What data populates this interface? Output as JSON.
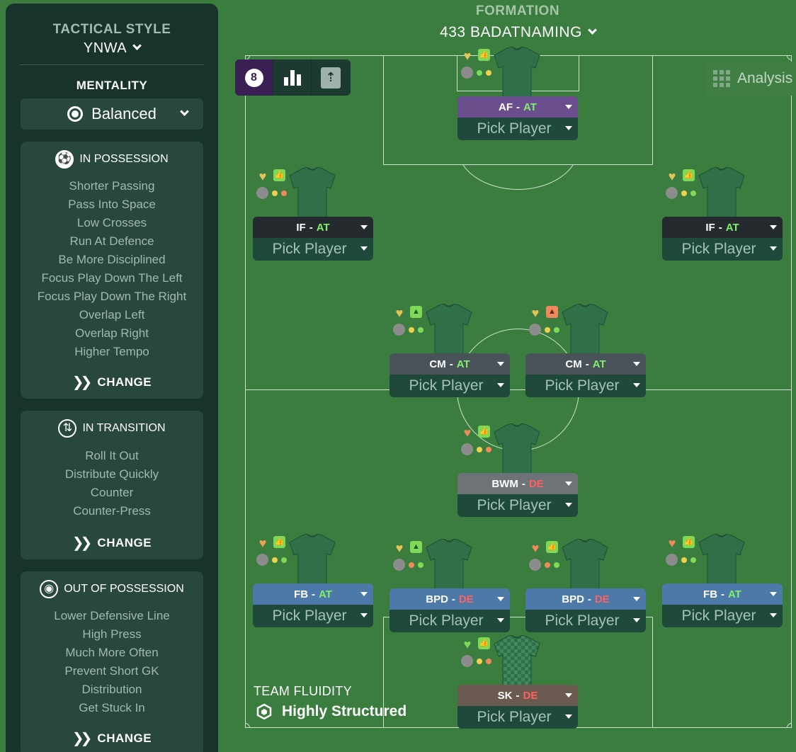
{
  "sidebar": {
    "tactical_style_label": "TACTICAL STYLE",
    "tactical_style_value": "YNWA",
    "mentality_label": "MENTALITY",
    "mentality_value": "Balanced",
    "in_possession": {
      "title": "IN POSSESSION",
      "options": [
        "Shorter Passing",
        "Pass Into Space",
        "Low Crosses",
        "Run At Defence",
        "Be More Disciplined",
        "Focus Play Down The Left",
        "Focus Play Down The Right",
        "Overlap Left",
        "Overlap Right",
        "Higher Tempo"
      ],
      "change_label": "CHANGE"
    },
    "in_transition": {
      "title": "IN TRANSITION",
      "options": [
        "Roll It Out",
        "Distribute Quickly",
        "Counter",
        "Counter-Press"
      ],
      "change_label": "CHANGE"
    },
    "out_of_possession": {
      "title": "OUT OF POSSESSION",
      "options": [
        "Lower Defensive Line",
        "High Press",
        "Much More Often",
        "Prevent Short GK",
        "Distribution",
        "Get Stuck In"
      ],
      "change_label": "CHANGE"
    }
  },
  "formation": {
    "label": "FORMATION",
    "name": "433 BADATNAMING"
  },
  "toolbar": {
    "analysis_label": "Analysis"
  },
  "team_fluidity": {
    "label": "TEAM FLUIDITY",
    "value": "Highly Structured"
  },
  "players": [
    {
      "role": "AF",
      "duty": "AT",
      "pick": "Pick Player",
      "role_color": "#6b4e8e",
      "heart_color": "#e5c55a",
      "thumb": "thumb",
      "dot1": "#7ed957",
      "dot2": "#f0d050"
    },
    {
      "role": "IF",
      "duty": "AT",
      "pick": "Pick Player",
      "role_color": "#252a2e",
      "heart_color": "#e5c55a",
      "thumb": "thumb",
      "dot1": "#f0d050",
      "dot2": "#f08a5a"
    },
    {
      "role": "IF",
      "duty": "AT",
      "pick": "Pick Player",
      "role_color": "#252a2e",
      "heart_color": "#e5c55a",
      "thumb": "thumb",
      "dot1": "#f0d050",
      "dot2": "#7ed957"
    },
    {
      "role": "CM",
      "duty": "AT",
      "pick": "Pick Player",
      "role_color": "#4a5259",
      "heart_color": "#e5c55a",
      "thumb": "up",
      "dot1": "#f0d050",
      "dot2": "#7ed957"
    },
    {
      "role": "CM",
      "duty": "AT",
      "pick": "Pick Player",
      "role_color": "#4a5259",
      "heart_color": "#e5c55a",
      "thumb": "up-orange",
      "dot1": "#f0d050",
      "dot2": "#7ed957"
    },
    {
      "role": "BWM",
      "duty": "DE",
      "pick": "Pick Player",
      "role_color": "#6e7378",
      "heart_color": "#f08a5a",
      "thumb": "thumb",
      "dot1": "#f0d050",
      "dot2": "#f08a5a"
    },
    {
      "role": "FB",
      "duty": "AT",
      "pick": "Pick Player",
      "role_color": "#4c79a8",
      "heart_color": "#f0a050",
      "thumb": "thumb",
      "dot1": "#f0d050",
      "dot2": "#7ed957"
    },
    {
      "role": "BPD",
      "duty": "DE",
      "pick": "Pick Player",
      "role_color": "#4c79a8",
      "heart_color": "#e5c55a",
      "thumb": "up",
      "dot1": "#f08a5a",
      "dot2": "#7ed957"
    },
    {
      "role": "BPD",
      "duty": "DE",
      "pick": "Pick Player",
      "role_color": "#4c79a8",
      "heart_color": "#f08a5a",
      "thumb": "thumb",
      "dot1": "#f08a5a",
      "dot2": "#7ed957"
    },
    {
      "role": "FB",
      "duty": "AT",
      "pick": "Pick Player",
      "role_color": "#4c79a8",
      "heart_color": "#f08a5a",
      "thumb": "thumb",
      "dot1": "#f0d050",
      "dot2": "#7ed957"
    },
    {
      "role": "SK",
      "duty": "DE",
      "pick": "Pick Player",
      "role_color": "#6b5a50",
      "heart_color": "#7ed957",
      "thumb": "thumb",
      "dot1": "#f0d050",
      "dot2": "#f08a5a"
    }
  ]
}
